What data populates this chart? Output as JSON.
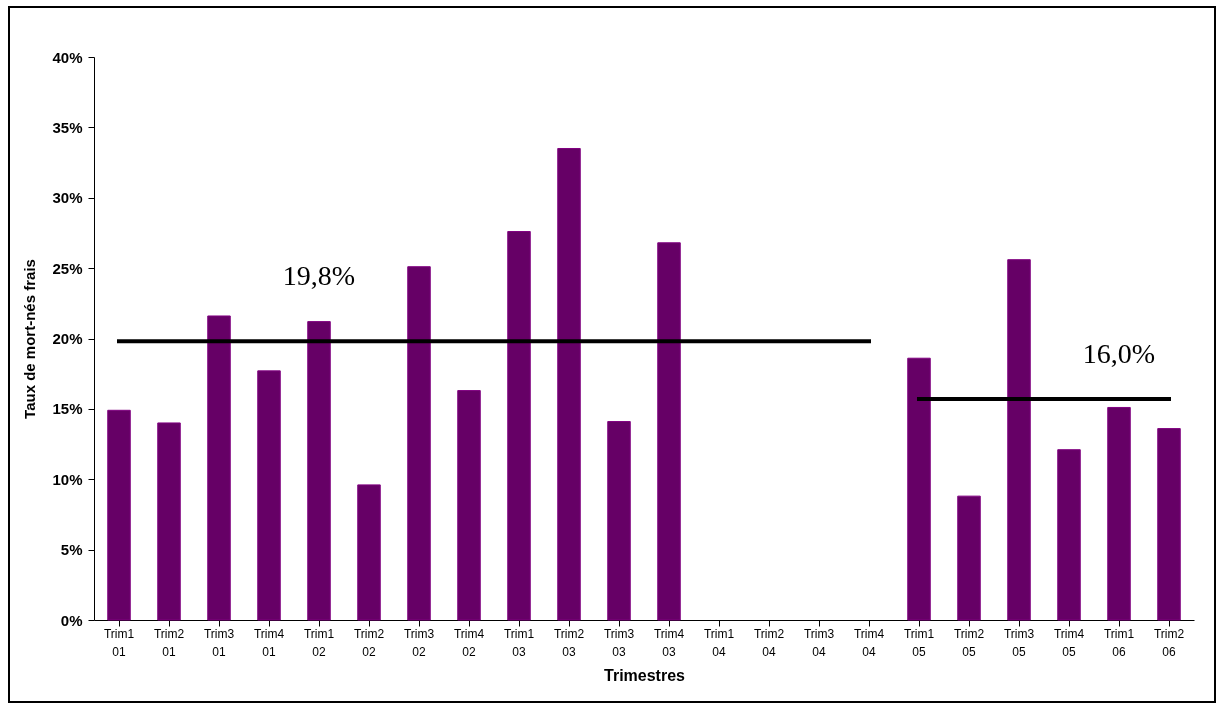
{
  "chart_data": {
    "type": "bar",
    "xlabel": "Trimestres",
    "ylabel": "Taux de mort-nés frais",
    "categories": [
      "Trim1 01",
      "Trim2 01",
      "Trim3 01",
      "Trim4 01",
      "Trim1 02",
      "Trim2 02",
      "Trim3 02",
      "Trim4 02",
      "Trim1 03",
      "Trim2 03",
      "Trim3 03",
      "Trim4 03",
      "Trim1 04",
      "Trim2 04",
      "Trim3 04",
      "Trim4 04",
      "Trim1 05",
      "Trim2 05",
      "Trim3 05",
      "Trim4 05",
      "Trim1 06",
      "Trim2 06"
    ],
    "series": [
      {
        "color": "#660066",
        "values": [
          14.9,
          14.0,
          21.6,
          17.7,
          21.2,
          9.6,
          25.1,
          16.3,
          27.6,
          33.5,
          14.1,
          26.8,
          null,
          null,
          null,
          null,
          18.6,
          8.8,
          25.6,
          12.1,
          15.1,
          13.6
        ]
      },
      {
        "type": "line",
        "name": "19,8%",
        "color": "#000000",
        "values": [
          19.8,
          19.8,
          19.8,
          19.8,
          19.8,
          19.8,
          19.8,
          19.8,
          19.8,
          19.8,
          19.8,
          19.8,
          19.8,
          19.8,
          19.8,
          19.8,
          null,
          null,
          null,
          null,
          null,
          null
        ]
      },
      {
        "type": "line",
        "name": "16,0%",
        "color": "#000000",
        "values": [
          null,
          null,
          null,
          null,
          null,
          null,
          null,
          null,
          null,
          null,
          null,
          null,
          null,
          null,
          null,
          null,
          15.7,
          15.7,
          15.7,
          15.7,
          15.7,
          15.7
        ]
      }
    ],
    "ylim": [
      0,
      40
    ],
    "yticks": [
      {
        "value": 0,
        "label": "0%"
      },
      {
        "value": 5,
        "label": "5%"
      },
      {
        "value": 10,
        "label": "10%"
      },
      {
        "value": 15,
        "label": "15%"
      },
      {
        "value": 20,
        "label": "20%"
      },
      {
        "value": 25,
        "label": "25%"
      },
      {
        "value": 30,
        "label": "30%"
      },
      {
        "value": 35,
        "label": "35%"
      },
      {
        "value": 40,
        "label": "40%"
      }
    ],
    "grid": false
  }
}
